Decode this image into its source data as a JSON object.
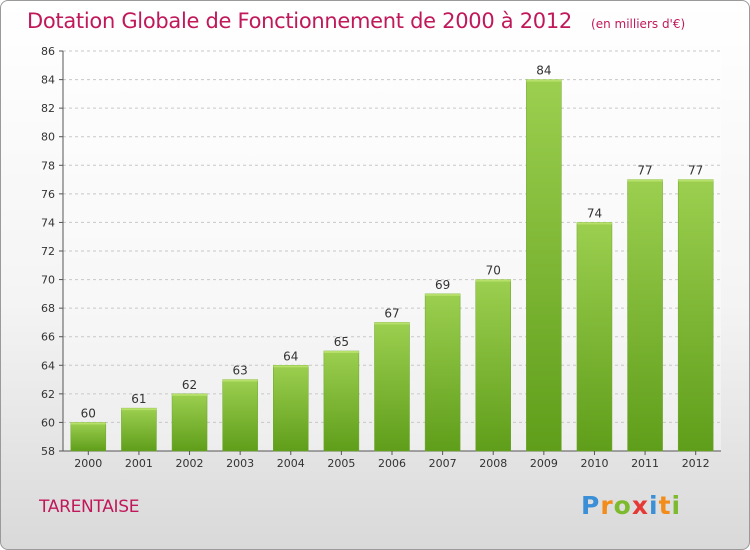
{
  "chart_data": {
    "type": "bar",
    "title": "Dotation Globale de Fonctionnement de 2000 à 2012",
    "unit": "(en milliers d'€)",
    "categories": [
      "2000",
      "2001",
      "2002",
      "2003",
      "2004",
      "2005",
      "2006",
      "2007",
      "2008",
      "2009",
      "2010",
      "2011",
      "2012"
    ],
    "values": [
      60,
      61,
      62,
      63,
      64,
      65,
      67,
      69,
      70,
      84,
      74,
      77,
      77
    ],
    "ylim": [
      58,
      86
    ],
    "yticks": [
      58,
      60,
      62,
      64,
      66,
      68,
      70,
      72,
      74,
      76,
      78,
      80,
      82,
      84,
      86
    ],
    "grid": true,
    "bar_color_top": "#9ccf4f",
    "bar_color_bottom": "#5f9e1a"
  },
  "location": "TARENTAISE",
  "brand": {
    "letters": [
      "P",
      "r",
      "o",
      "x",
      "i",
      "t",
      "i"
    ],
    "colors": [
      "#3a8fd6",
      "#f28c1b",
      "#7dba2e",
      "#e53935",
      "#3a8fd6",
      "#f28c1b",
      "#7dba2e"
    ]
  },
  "colors": {
    "title": "#c0185a",
    "grid": "#c8c8c8",
    "axis": "#555555"
  }
}
